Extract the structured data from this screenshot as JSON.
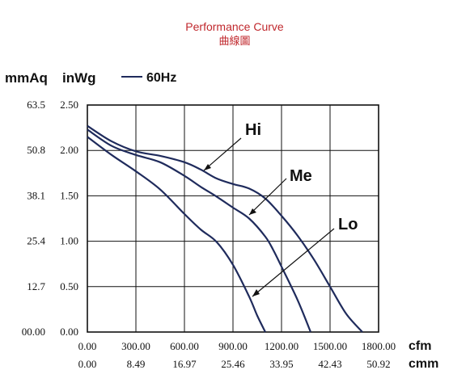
{
  "chart_data": {
    "type": "line",
    "title": "Performance Curve",
    "subtitle": "曲線圖",
    "y_units": [
      "mmAq",
      "inWg"
    ],
    "x_units": [
      "cfm",
      "cmm"
    ],
    "legend": {
      "label": "60Hz",
      "placement": "top-left"
    },
    "grid": true,
    "xlim": [
      0,
      1800
    ],
    "ylim": [
      0,
      2.5
    ],
    "x_ticks_cfm": [
      "0.00",
      "300.00",
      "600.00",
      "900.00",
      "1200.00",
      "1500.00",
      "1800.00"
    ],
    "x_ticks_cmm": [
      "0.00",
      "8.49",
      "16.97",
      "25.46",
      "33.95",
      "42.43",
      "50.92"
    ],
    "y_ticks_inwg": [
      "0.00",
      "0.50",
      "1.00",
      "1.50",
      "2.00",
      "2.50"
    ],
    "y_ticks_mmaq": [
      "00.00",
      "12.7",
      "25.4",
      "38.1",
      "50.8",
      "63.5"
    ],
    "series": [
      {
        "name": "Hi",
        "x": [
          0,
          150,
          300,
          450,
          600,
          700,
          800,
          900,
          1000,
          1100,
          1200,
          1300,
          1400,
          1500,
          1600,
          1700
        ],
        "y": [
          2.27,
          2.1,
          1.99,
          1.94,
          1.87,
          1.79,
          1.69,
          1.63,
          1.58,
          1.47,
          1.28,
          1.06,
          0.8,
          0.5,
          0.2,
          0.0
        ]
      },
      {
        "name": "Me",
        "x": [
          0,
          150,
          300,
          450,
          600,
          700,
          800,
          900,
          1000,
          1100,
          1150,
          1200,
          1300,
          1380
        ],
        "y": [
          2.23,
          2.05,
          1.95,
          1.87,
          1.72,
          1.6,
          1.49,
          1.37,
          1.25,
          1.05,
          0.9,
          0.72,
          0.35,
          0.0
        ]
      },
      {
        "name": "Lo",
        "x": [
          0,
          150,
          300,
          450,
          600,
          700,
          800,
          900,
          1000,
          1050,
          1100
        ],
        "y": [
          2.15,
          1.95,
          1.77,
          1.57,
          1.3,
          1.13,
          0.99,
          0.74,
          0.39,
          0.18,
          0.0
        ]
      }
    ]
  }
}
